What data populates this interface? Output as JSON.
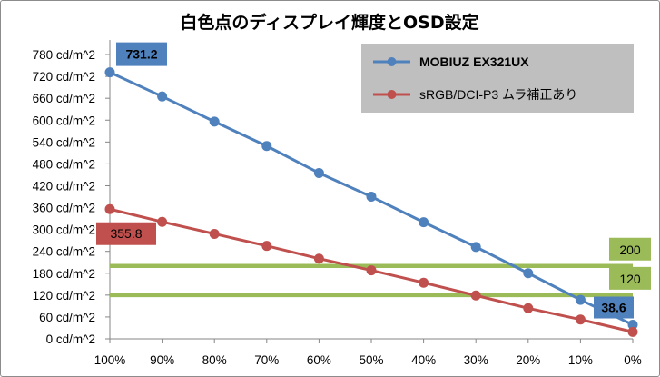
{
  "chart_data": {
    "type": "line",
    "title": "白色点のディスプレイ輝度とOSD設定",
    "categories": [
      "100%",
      "90%",
      "80%",
      "70%",
      "60%",
      "50%",
      "40%",
      "30%",
      "20%",
      "10%",
      "0%"
    ],
    "y_ticks": [
      "0 cd/m^2",
      "60 cd/m^2",
      "120 cd/m^2",
      "180 cd/m^2",
      "240 cd/m^2",
      "300 cd/m^2",
      "360 cd/m^2",
      "420 cd/m^2",
      "480 cd/m^2",
      "540 cd/m^2",
      "600 cd/m^2",
      "660 cd/m^2",
      "720 cd/m^2",
      "780 cd/m^2"
    ],
    "ylim": [
      0,
      810
    ],
    "grid": false,
    "legend_position": "top-right",
    "series": [
      {
        "name": "MOBIUZ EX321UX",
        "color": "#4f81bd",
        "values": [
          731.2,
          665,
          596,
          529,
          455,
          390,
          320,
          252,
          180,
          107,
          38.6
        ]
      },
      {
        "name": "sRGB/DCI-P3 ムラ補正あり",
        "color": "#c0504d",
        "values": [
          355.8,
          321,
          288,
          255,
          220,
          188,
          154,
          119,
          84,
          53,
          19
        ]
      }
    ],
    "reference_lines": [
      {
        "value": 200,
        "label": "200",
        "color": "#9bbb59"
      },
      {
        "value": 120,
        "label": "120",
        "color": "#9bbb59"
      }
    ],
    "callouts": [
      {
        "label": "731.2",
        "color": "#4f81bd"
      },
      {
        "label": "355.8",
        "color": "#c0504d"
      },
      {
        "label": "38.6",
        "color": "#4f81bd"
      }
    ]
  }
}
